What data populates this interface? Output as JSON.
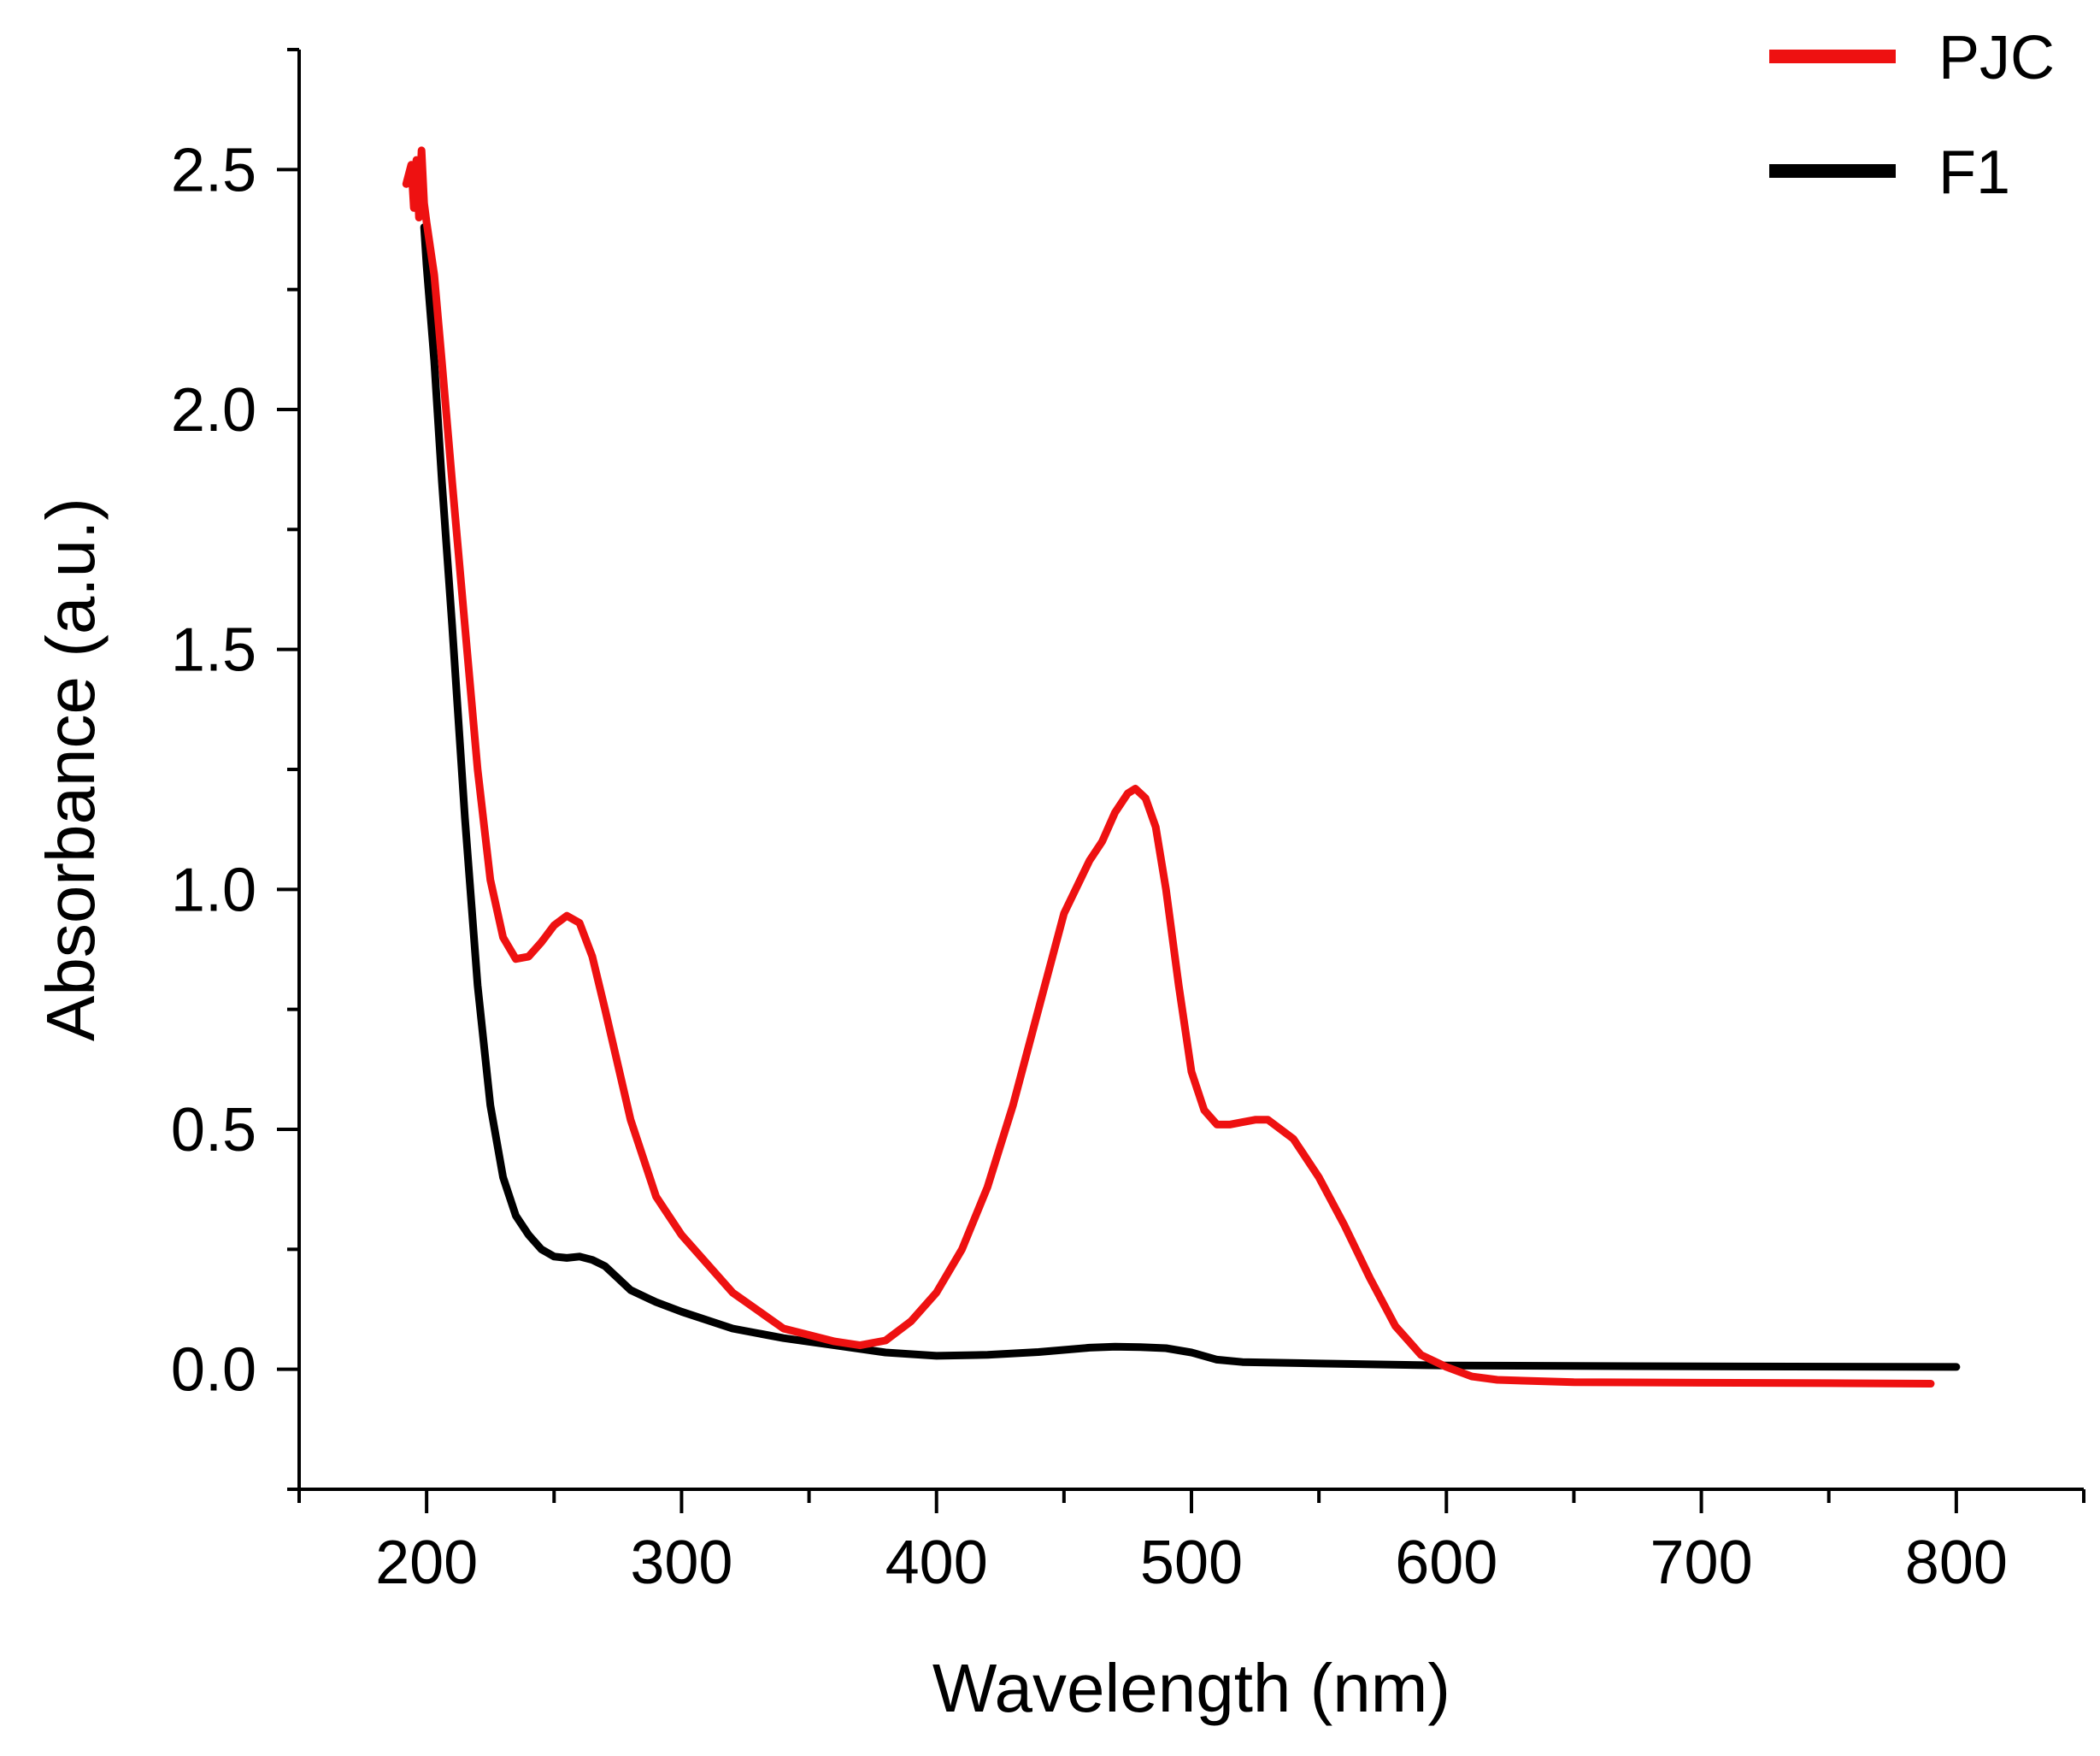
{
  "chart_data": {
    "type": "line",
    "title": "",
    "xlabel": "Wavelength (nm)",
    "ylabel": "Absorbance (a.u.)",
    "xlim": [
      150,
      850
    ],
    "ylim": [
      -0.25,
      2.75
    ],
    "xticks": [
      200,
      300,
      400,
      500,
      600,
      700,
      800
    ],
    "xtick_labels": [
      "200",
      "300",
      "400",
      "500",
      "600",
      "700",
      "800"
    ],
    "yticks": [
      0.0,
      0.5,
      1.0,
      1.5,
      2.0,
      2.5
    ],
    "ytick_labels": [
      "0.0",
      "0.5",
      "1.0",
      "1.5",
      "2.0",
      "2.5"
    ],
    "grid": false,
    "legend_position": "top-right",
    "series": [
      {
        "name": "PJC",
        "color": "#ee1111",
        "x": [
          192,
          194,
          195,
          196,
          197,
          198,
          199,
          200,
          203,
          206,
          210,
          215,
          220,
          225,
          230,
          235,
          240,
          245,
          250,
          255,
          260,
          265,
          270,
          280,
          290,
          300,
          320,
          340,
          360,
          370,
          380,
          390,
          400,
          410,
          420,
          430,
          440,
          450,
          460,
          465,
          470,
          475,
          478,
          482,
          486,
          490,
          495,
          500,
          505,
          510,
          515,
          520,
          525,
          530,
          540,
          550,
          560,
          570,
          580,
          590,
          600,
          610,
          620,
          650,
          700,
          750,
          790
        ],
        "y": [
          2.47,
          2.51,
          2.42,
          2.52,
          2.4,
          2.54,
          2.43,
          2.39,
          2.28,
          2.1,
          1.85,
          1.55,
          1.25,
          1.02,
          0.9,
          0.855,
          0.86,
          0.89,
          0.925,
          0.945,
          0.93,
          0.86,
          0.75,
          0.52,
          0.36,
          0.28,
          0.16,
          0.085,
          0.058,
          0.05,
          0.06,
          0.1,
          0.16,
          0.25,
          0.38,
          0.55,
          0.75,
          0.95,
          1.06,
          1.1,
          1.16,
          1.2,
          1.21,
          1.19,
          1.13,
          1.0,
          0.8,
          0.62,
          0.54,
          0.51,
          0.51,
          0.515,
          0.52,
          0.52,
          0.48,
          0.4,
          0.3,
          0.19,
          0.09,
          0.03,
          0.005,
          -0.015,
          -0.022,
          -0.027,
          -0.028,
          -0.029,
          -0.03
        ]
      },
      {
        "name": "F1",
        "color": "#000000",
        "x": [
          199,
          200,
          203,
          206,
          210,
          215,
          220,
          225,
          230,
          235,
          240,
          245,
          250,
          255,
          260,
          265,
          270,
          275,
          280,
          290,
          300,
          320,
          340,
          360,
          380,
          400,
          420,
          440,
          460,
          470,
          480,
          490,
          500,
          510,
          520,
          550,
          600,
          700,
          800
        ],
        "y": [
          2.38,
          2.3,
          2.1,
          1.85,
          1.55,
          1.15,
          0.8,
          0.55,
          0.4,
          0.32,
          0.28,
          0.25,
          0.235,
          0.232,
          0.235,
          0.228,
          0.215,
          0.19,
          0.165,
          0.14,
          0.12,
          0.085,
          0.065,
          0.05,
          0.035,
          0.028,
          0.03,
          0.036,
          0.045,
          0.047,
          0.046,
          0.044,
          0.035,
          0.02,
          0.015,
          0.012,
          0.008,
          0.006,
          0.005
        ]
      }
    ]
  }
}
